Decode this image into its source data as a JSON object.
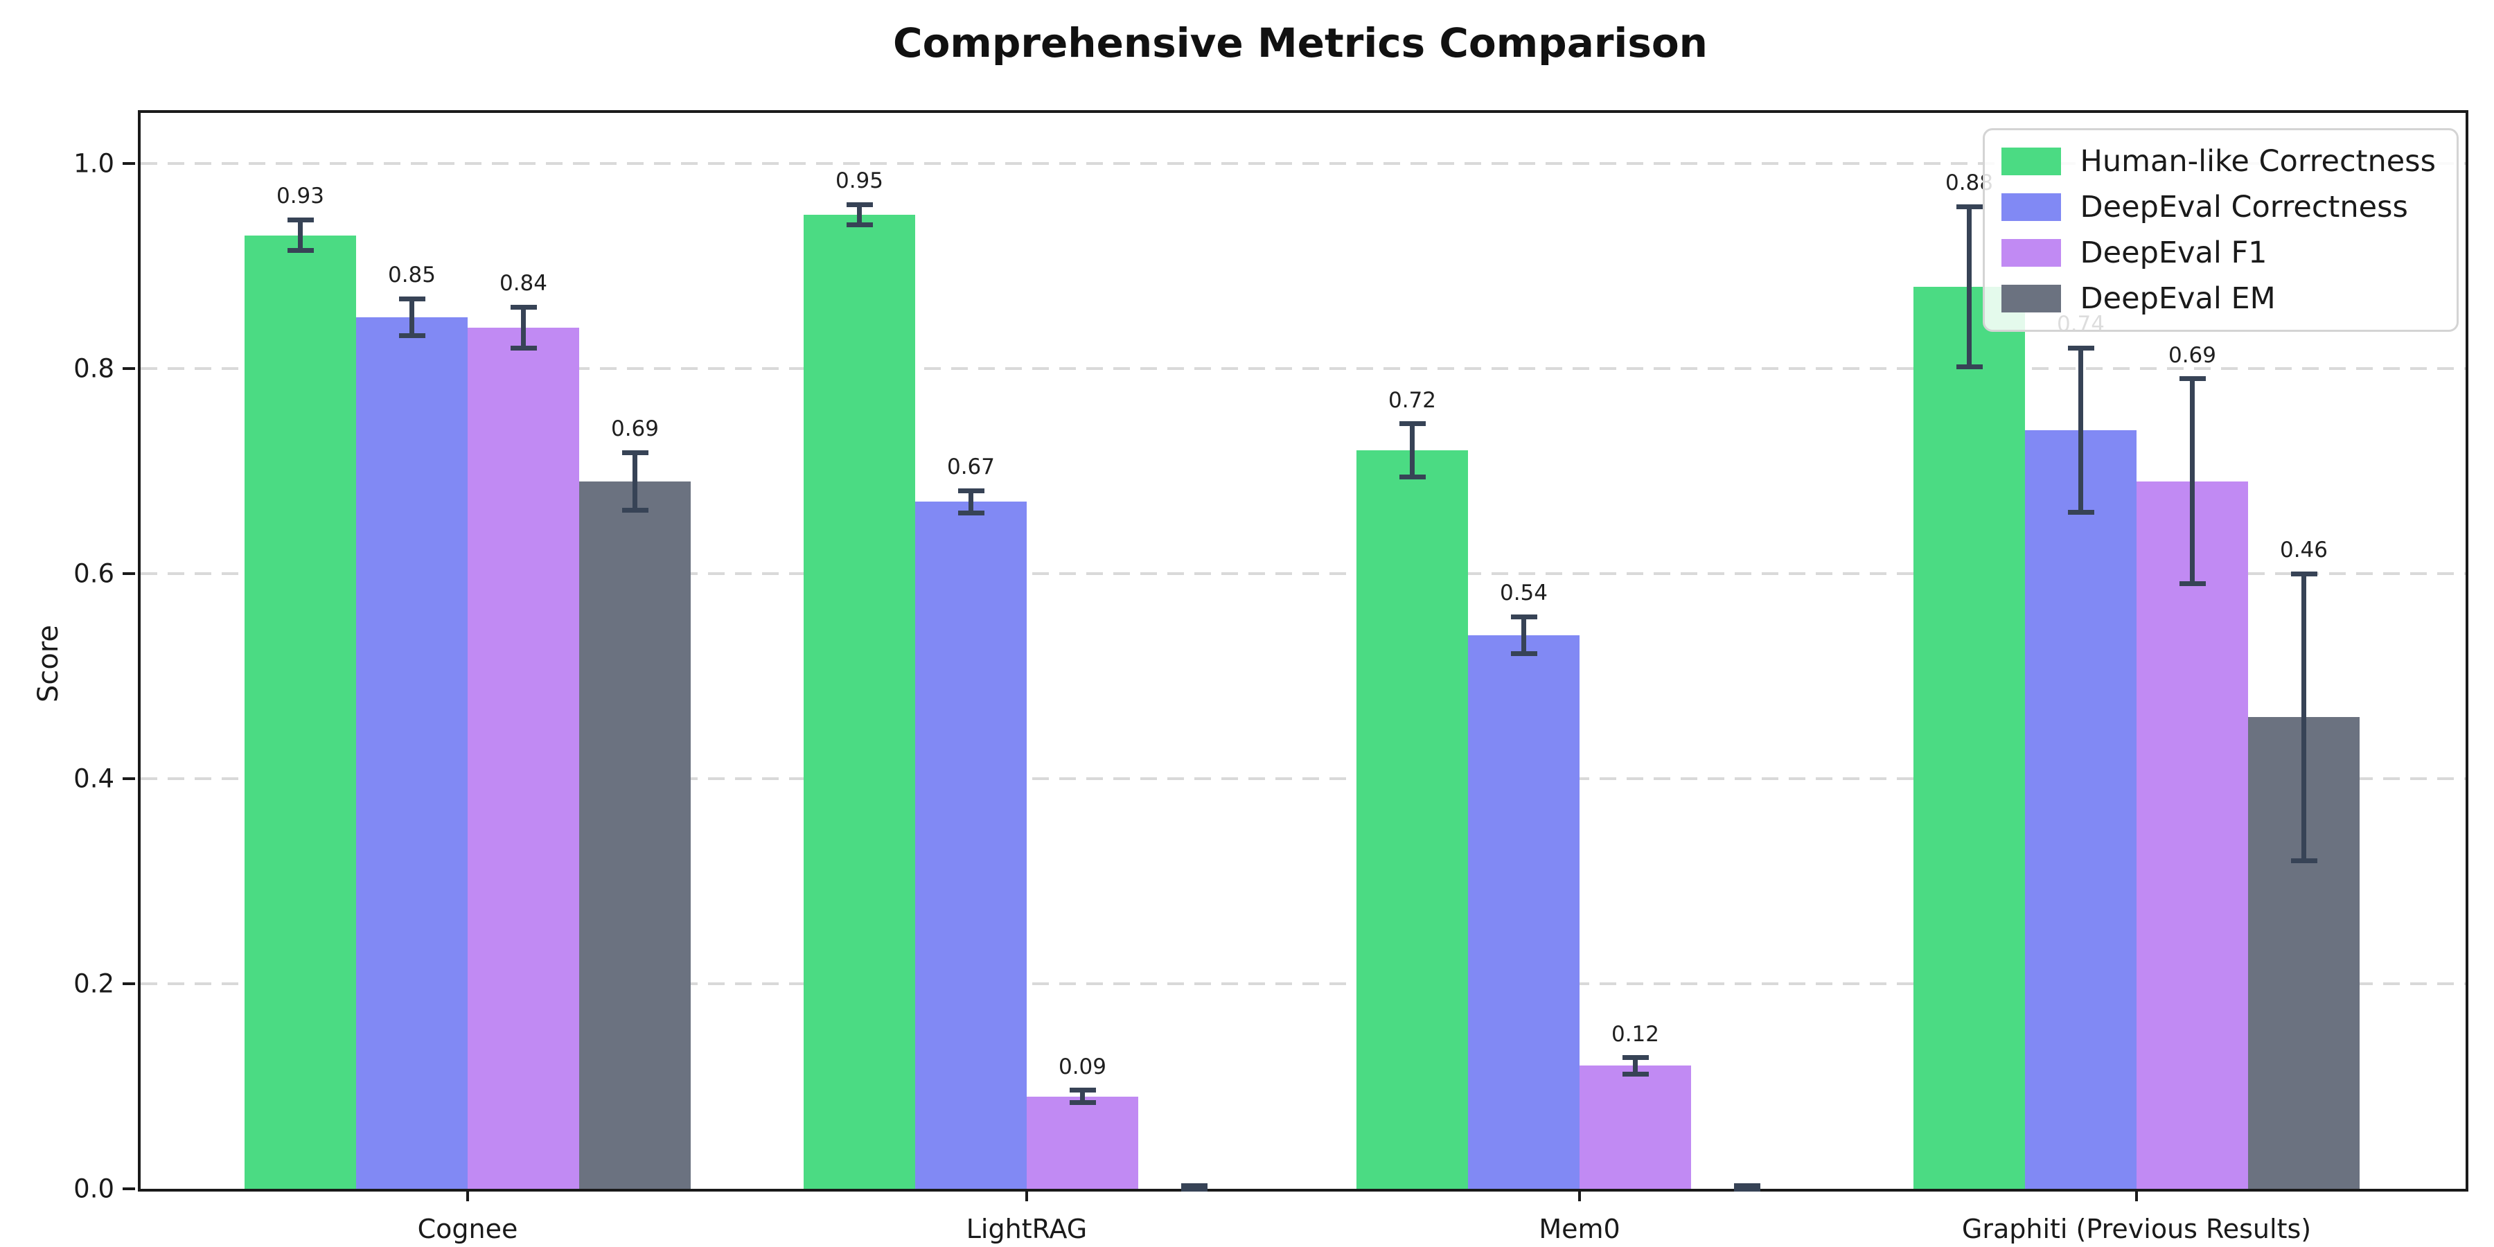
{
  "title": "Comprehensive Metrics Comparison",
  "y_axis": {
    "label": "Score",
    "ticks": [
      "0.0",
      "0.2",
      "0.4",
      "0.6",
      "0.8",
      "1.0"
    ]
  },
  "chart_data": {
    "type": "bar",
    "title": "Comprehensive Metrics Comparison",
    "xlabel": "",
    "ylabel": "Score",
    "ylim": [
      0,
      1.05
    ],
    "ytick_values": [
      0.0,
      0.2,
      0.4,
      0.6,
      0.8,
      1.0
    ],
    "grid": "horizontal dashed",
    "legend_position": "upper right",
    "error_bar_color": "#374356",
    "categories": [
      "Cognee",
      "LightRAG",
      "Mem0",
      "Graphiti (Previous Results)"
    ],
    "series": [
      {
        "name": "Human-like Correctness",
        "color": "#4bdb83",
        "values": [
          0.93,
          0.95,
          0.72,
          0.88
        ],
        "errors": [
          0.015,
          0.01,
          0.026,
          0.078
        ],
        "labels": [
          "0.93",
          "0.95",
          "0.72",
          "0.88"
        ]
      },
      {
        "name": "DeepEval Correctness",
        "color": "#8189f4",
        "values": [
          0.85,
          0.67,
          0.54,
          0.74
        ],
        "errors": [
          0.018,
          0.011,
          0.018,
          0.08
        ],
        "labels": [
          "0.85",
          "0.67",
          "0.54",
          "0.74"
        ]
      },
      {
        "name": "DeepEval F1",
        "color": "#c18af3",
        "values": [
          0.84,
          0.09,
          0.12,
          0.69
        ],
        "errors": [
          0.02,
          0.006,
          0.008,
          0.1
        ],
        "labels": [
          "0.84",
          "0.09",
          "0.12",
          "0.69"
        ]
      },
      {
        "name": "DeepEval EM",
        "color": "#6b7280",
        "values": [
          0.69,
          0.0,
          0.0,
          0.46
        ],
        "errors": [
          0.028,
          0.003,
          0.003,
          0.14
        ],
        "labels": [
          "0.69",
          "",
          "",
          "0.46"
        ]
      }
    ]
  }
}
